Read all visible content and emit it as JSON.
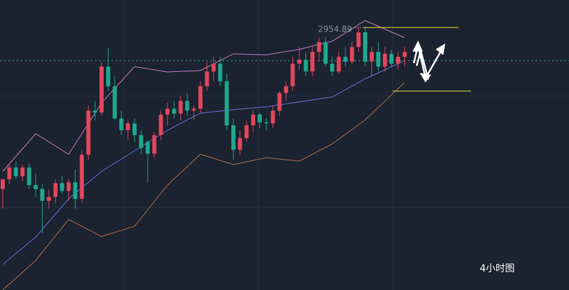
{
  "chart_data": {
    "type": "candlestick",
    "title": "4小时图",
    "ylim": [
      2686.9,
      2983
    ],
    "up_color": "#e0475c",
    "down_color": "#1fa88e",
    "open": [
      2790,
      2800,
      2812,
      2803,
      2812,
      2794,
      2790,
      2778,
      2782,
      2796,
      2788,
      2797,
      2780,
      2825,
      2870,
      2868,
      2915,
      2895,
      2862,
      2850,
      2857,
      2845,
      2838,
      2826,
      2845,
      2866,
      2872,
      2867,
      2880,
      2870,
      2872,
      2895,
      2910,
      2918,
      2900,
      2855,
      2830,
      2842,
      2855,
      2866,
      2858,
      2857,
      2870,
      2888,
      2895,
      2918,
      2922,
      2910,
      2930,
      2940,
      2918,
      2910,
      2925,
      2920,
      2935,
      2950,
      2920,
      2930,
      2915,
      2928,
      2918,
      2925
    ],
    "high": [
      2800,
      2815,
      2818,
      2815,
      2816,
      2806,
      2795,
      2790,
      2800,
      2803,
      2800,
      2810,
      2830,
      2875,
      2880,
      2920,
      2934,
      2905,
      2870,
      2860,
      2862,
      2850,
      2840,
      2848,
      2870,
      2878,
      2880,
      2885,
      2888,
      2875,
      2900,
      2920,
      2925,
      2925,
      2908,
      2862,
      2850,
      2860,
      2870,
      2868,
      2862,
      2875,
      2890,
      2900,
      2925,
      2935,
      2930,
      2935,
      2945,
      2945,
      2925,
      2930,
      2935,
      2940,
      2955,
      2955,
      2935,
      2940,
      2935,
      2932,
      2930,
      2935
    ],
    "low": [
      2770,
      2795,
      2800,
      2798,
      2790,
      2782,
      2745,
      2770,
      2775,
      2785,
      2778,
      2770,
      2776,
      2820,
      2860,
      2865,
      2890,
      2860,
      2845,
      2840,
      2838,
      2825,
      2797,
      2822,
      2840,
      2855,
      2862,
      2860,
      2865,
      2860,
      2868,
      2890,
      2900,
      2895,
      2850,
      2820,
      2825,
      2838,
      2848,
      2852,
      2850,
      2852,
      2865,
      2880,
      2890,
      2912,
      2905,
      2905,
      2920,
      2915,
      2905,
      2908,
      2915,
      2918,
      2930,
      2915,
      2905,
      2910,
      2910,
      2915,
      2912,
      2915
    ],
    "close": [
      2800,
      2812,
      2803,
      2812,
      2794,
      2790,
      2778,
      2782,
      2796,
      2788,
      2797,
      2780,
      2825,
      2870,
      2868,
      2915,
      2895,
      2862,
      2850,
      2857,
      2845,
      2832,
      2826,
      2845,
      2866,
      2872,
      2867,
      2880,
      2870,
      2872,
      2895,
      2910,
      2918,
      2900,
      2855,
      2830,
      2842,
      2855,
      2866,
      2858,
      2857,
      2870,
      2888,
      2895,
      2918,
      2922,
      2910,
      2930,
      2940,
      2918,
      2910,
      2925,
      2920,
      2935,
      2950,
      2920,
      2930,
      2915,
      2928,
      2918,
      2925,
      2930
    ],
    "bands": [
      {
        "name": "upper",
        "color": "#d67fc8",
        "x": [
          0,
          5,
          10,
          15,
          20,
          25,
          30,
          35,
          40,
          45,
          50,
          55,
          61
        ],
        "values": [
          2808,
          2846.5,
          2825.5,
          2878,
          2915,
          2909.5,
          2911,
          2928,
          2927,
          2932.6,
          2941,
          2962,
          2944.5
        ]
      },
      {
        "name": "middle",
        "color": "#6b74e0",
        "x": [
          0,
          5,
          10,
          15,
          20,
          25,
          30,
          35,
          40,
          45,
          50,
          55,
          61
        ],
        "values": [
          2713,
          2741,
          2780,
          2808,
          2829,
          2850,
          2867.5,
          2871,
          2874,
          2879,
          2884,
          2902.5,
          2921
        ]
      },
      {
        "name": "lower",
        "color": "#b8734a",
        "x": [
          0,
          5,
          10,
          15,
          20,
          25,
          30,
          35,
          40,
          45,
          50,
          55,
          61
        ],
        "values": [
          2687,
          2717,
          2759,
          2741.5,
          2752,
          2794,
          2825.5,
          2815,
          2822,
          2818.5,
          2836,
          2860.5,
          2899
        ]
      }
    ],
    "high_marker": {
      "value": 2954.89,
      "label": "2954.89"
    },
    "levels": [
      2954.89,
      2890
    ],
    "level_color": "#e8e83a",
    "last_price": 2921
  }
}
